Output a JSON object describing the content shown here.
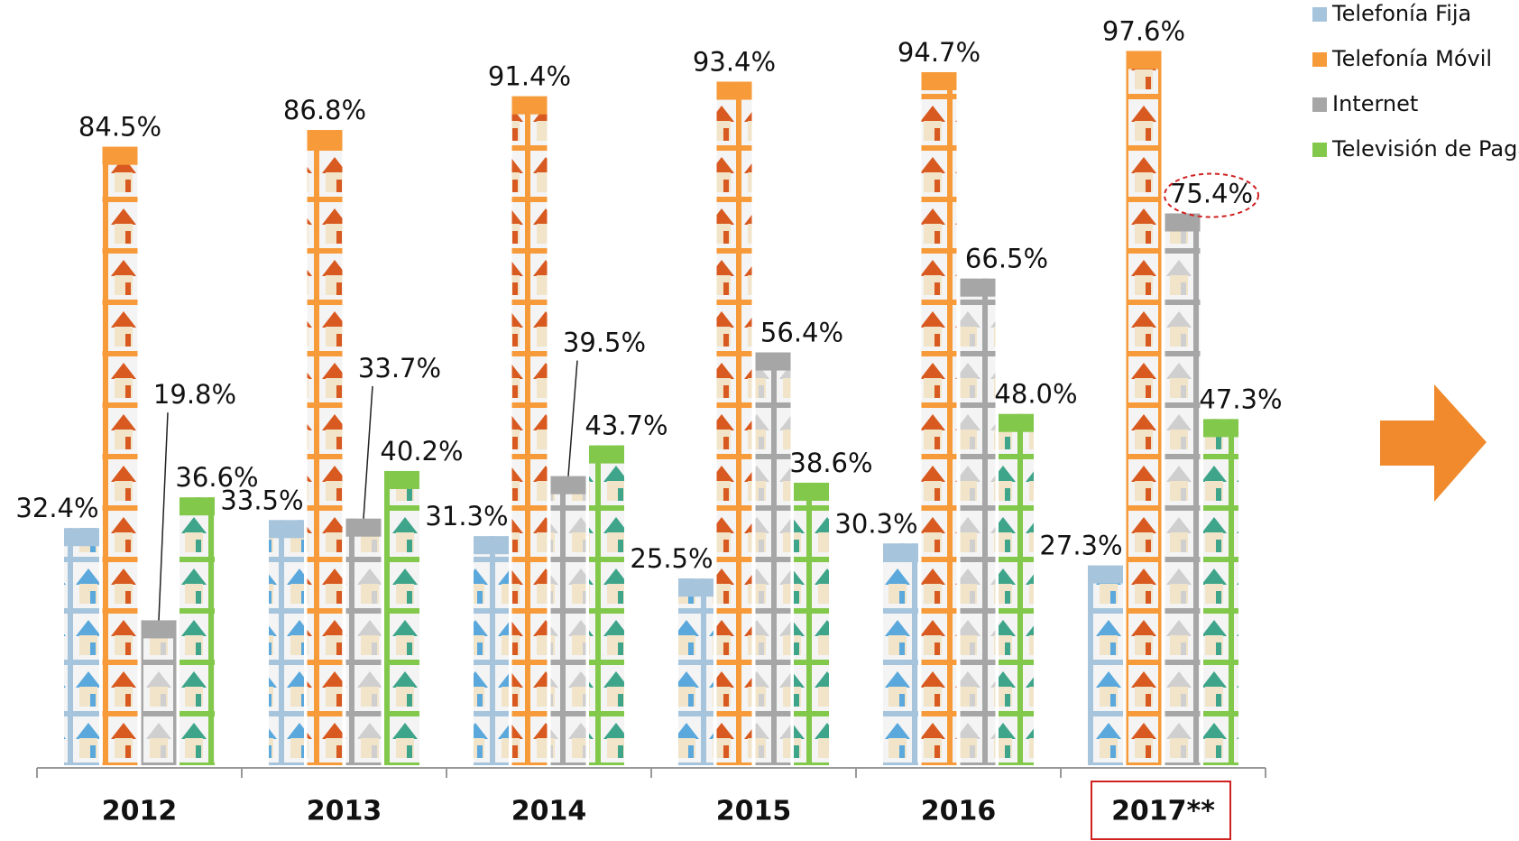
{
  "chart_data": {
    "type": "bar",
    "categories": [
      "2012",
      "2013",
      "2014",
      "2015",
      "2016",
      "2017**"
    ],
    "series": [
      {
        "name": "Telefonía Fija",
        "color": "#a6c4dc",
        "values": [
          32.4,
          33.5,
          31.3,
          25.5,
          30.3,
          27.3
        ],
        "value_labels": [
          "32.4%",
          "33.5%",
          "31.3%",
          "25.5%",
          "30.3%",
          "27.3%"
        ]
      },
      {
        "name": "Telefonía Móvil",
        "color": "#f79a3a",
        "values": [
          84.5,
          86.8,
          91.4,
          93.4,
          94.7,
          97.6
        ],
        "value_labels": [
          "84.5%",
          "86.8%",
          "91.4%",
          "93.4%",
          "94.7%",
          "97.6%"
        ]
      },
      {
        "name": "Internet",
        "color": "#a6a6a6",
        "values": [
          19.8,
          33.7,
          39.5,
          56.4,
          66.5,
          75.4
        ],
        "value_labels": [
          "19.8%",
          "33.7%",
          "39.5%",
          "56.4%",
          "66.5%",
          "75.4%"
        ]
      },
      {
        "name": "Televisión de Paga",
        "color": "#82c84a",
        "values": [
          36.6,
          40.2,
          43.7,
          38.6,
          48.0,
          47.3
        ],
        "value_labels": [
          "36.6%",
          "40.2%",
          "43.7%",
          "38.6%",
          "48.0%",
          "47.3%"
        ]
      }
    ],
    "legend": "top-right"
  }
}
